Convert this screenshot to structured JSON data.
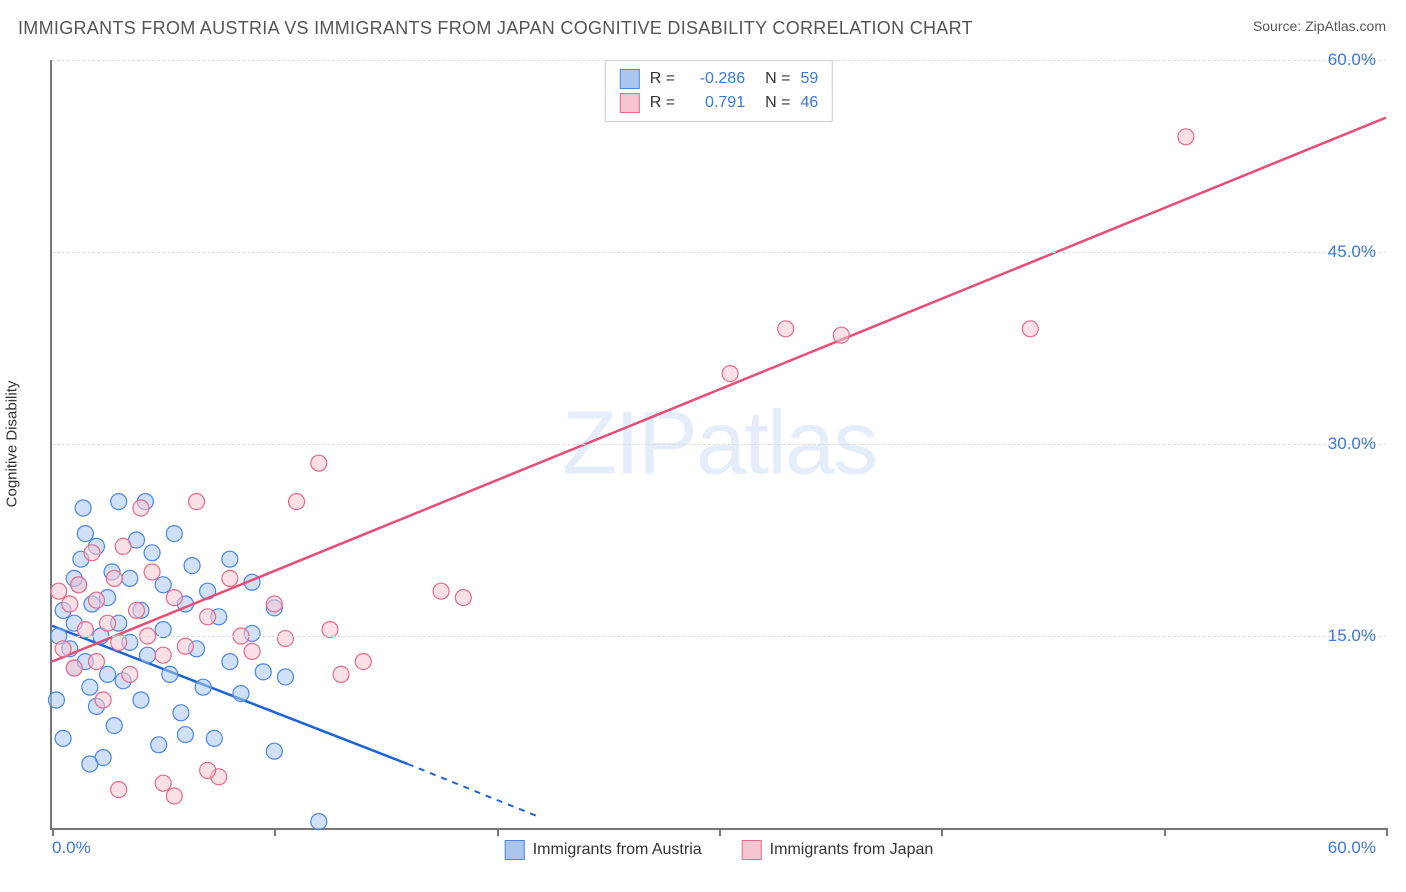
{
  "title": "IMMIGRANTS FROM AUSTRIA VS IMMIGRANTS FROM JAPAN COGNITIVE DISABILITY CORRELATION CHART",
  "source_prefix": "Source: ",
  "source": "ZipAtlas.com",
  "y_axis_label": "Cognitive Disability",
  "watermark": "ZIPatlas",
  "chart": {
    "type": "scatter",
    "xlim": [
      0,
      60
    ],
    "ylim": [
      0,
      60
    ],
    "x_tick_label_min": "0.0%",
    "x_tick_label_max": "60.0%",
    "x_ticks": [
      0,
      10,
      20,
      30,
      40,
      50,
      60
    ],
    "y_ticks": [
      15,
      30,
      45,
      60
    ],
    "y_tick_labels": [
      "15.0%",
      "30.0%",
      "45.0%",
      "60.0%"
    ],
    "grid_color": "#dddddd",
    "axis_color": "#777777",
    "background_color": "#ffffff",
    "tick_label_color": "#3b78d8",
    "marker_radius": 8,
    "marker_opacity": 0.55,
    "series": [
      {
        "name": "Immigrants from Austria",
        "label": "Immigrants from Austria",
        "fill_color": "#aac6ee",
        "stroke_color": "#4a86e8",
        "line_color": "#1c64d8",
        "R_label": "R =",
        "R": "-0.286",
        "N_label": "N =",
        "N": "59",
        "regression": {
          "x1": 0,
          "y1": 15.8,
          "x2": 16,
          "y2": 5.0,
          "dash_x2": 22,
          "dash_y2": 0.8
        },
        "points": [
          [
            0.3,
            15
          ],
          [
            0.5,
            17
          ],
          [
            0.8,
            14
          ],
          [
            1.0,
            12.5
          ],
          [
            1.0,
            16
          ],
          [
            1.2,
            19
          ],
          [
            1.3,
            21
          ],
          [
            1.5,
            13
          ],
          [
            1.5,
            23
          ],
          [
            1.7,
            11
          ],
          [
            1.8,
            17.5
          ],
          [
            2.0,
            22
          ],
          [
            2.0,
            9.5
          ],
          [
            2.2,
            15
          ],
          [
            2.3,
            5.5
          ],
          [
            2.5,
            18
          ],
          [
            2.5,
            12
          ],
          [
            2.7,
            20
          ],
          [
            2.8,
            8
          ],
          [
            3.0,
            16
          ],
          [
            3.0,
            25.5
          ],
          [
            1.4,
            25
          ],
          [
            3.2,
            11.5
          ],
          [
            3.5,
            14.5
          ],
          [
            3.5,
            19.5
          ],
          [
            3.8,
            22.5
          ],
          [
            4.0,
            10
          ],
          [
            4.0,
            17
          ],
          [
            4.3,
            13.5
          ],
          [
            4.5,
            21.5
          ],
          [
            4.8,
            6.5
          ],
          [
            5.0,
            15.5
          ],
          [
            5.0,
            19
          ],
          [
            5.3,
            12
          ],
          [
            5.5,
            23
          ],
          [
            5.8,
            9
          ],
          [
            6.0,
            17.5
          ],
          [
            6.0,
            7.3
          ],
          [
            6.3,
            20.5
          ],
          [
            6.5,
            14
          ],
          [
            6.8,
            11
          ],
          [
            7.0,
            18.5
          ],
          [
            7.3,
            7
          ],
          [
            7.5,
            16.5
          ],
          [
            8.0,
            13
          ],
          [
            8.0,
            21
          ],
          [
            8.5,
            10.5
          ],
          [
            9.0,
            15.2
          ],
          [
            9.0,
            19.2
          ],
          [
            9.5,
            12.2
          ],
          [
            10.0,
            17.2
          ],
          [
            10.0,
            6
          ],
          [
            10.5,
            11.8
          ],
          [
            4.2,
            25.5
          ],
          [
            0.5,
            7
          ],
          [
            1.7,
            5
          ],
          [
            1.0,
            19.5
          ],
          [
            0.2,
            10
          ],
          [
            12.0,
            0.5
          ]
        ]
      },
      {
        "name": "Immigrants from Japan",
        "label": "Immigrants from Japan",
        "fill_color": "#f7c6d0",
        "stroke_color": "#e86a8a",
        "line_color": "#e84d77",
        "R_label": "R =",
        "R": "0.791",
        "N_label": "N =",
        "N": "46",
        "regression": {
          "x1": 0,
          "y1": 13.0,
          "x2": 60,
          "y2": 55.5
        },
        "points": [
          [
            0.5,
            14
          ],
          [
            0.8,
            17.5
          ],
          [
            1.0,
            12.5
          ],
          [
            1.2,
            19
          ],
          [
            1.5,
            15.5
          ],
          [
            1.8,
            21.5
          ],
          [
            2.0,
            13
          ],
          [
            2.0,
            17.8
          ],
          [
            2.3,
            10
          ],
          [
            2.5,
            16
          ],
          [
            2.8,
            19.5
          ],
          [
            3.0,
            14.5
          ],
          [
            3.2,
            22
          ],
          [
            0.3,
            18.5
          ],
          [
            3.5,
            12
          ],
          [
            3.8,
            17
          ],
          [
            4.0,
            25
          ],
          [
            4.3,
            15
          ],
          [
            4.5,
            20
          ],
          [
            5.0,
            13.5
          ],
          [
            5.0,
            3.5
          ],
          [
            5.5,
            18
          ],
          [
            6.0,
            14.2
          ],
          [
            6.5,
            25.5
          ],
          [
            7.0,
            16.5
          ],
          [
            7.5,
            4
          ],
          [
            8.0,
            19.5
          ],
          [
            8.5,
            15
          ],
          [
            9.0,
            13.8
          ],
          [
            10.0,
            17.5
          ],
          [
            10.5,
            14.8
          ],
          [
            11.0,
            25.5
          ],
          [
            12.0,
            28.5
          ],
          [
            12.5,
            15.5
          ],
          [
            13.0,
            12
          ],
          [
            14.0,
            13
          ],
          [
            17.5,
            18.5
          ],
          [
            18.5,
            18
          ],
          [
            30.5,
            35.5
          ],
          [
            33.0,
            39
          ],
          [
            35.5,
            38.5
          ],
          [
            44.0,
            39
          ],
          [
            51.0,
            54
          ],
          [
            5.5,
            2.5
          ],
          [
            3.0,
            3
          ],
          [
            7.0,
            4.5
          ]
        ]
      }
    ]
  }
}
